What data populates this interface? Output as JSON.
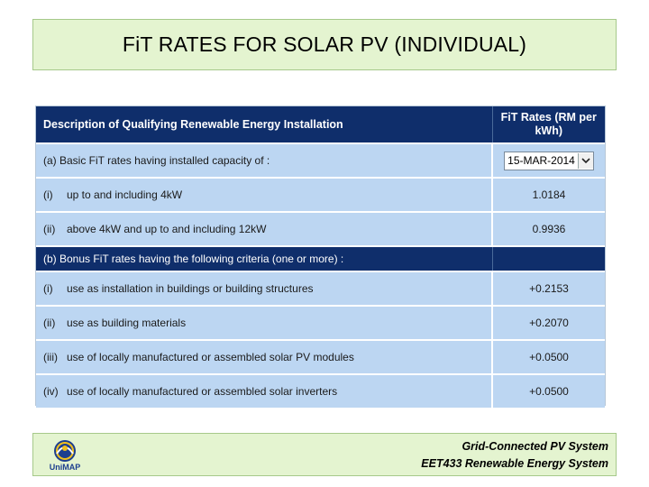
{
  "slide": {
    "title": "FiT RATES FOR SOLAR PV (INDIVIDUAL)"
  },
  "table": {
    "header": {
      "description": "Description of Qualifying Renewable Energy Installation",
      "rate_line1": "FiT Rates (RM per",
      "rate_line2": "kWh)"
    },
    "section_a": {
      "label": "(a) Basic FiT rates having installed capacity of :",
      "date_select": "15-MAR-2014"
    },
    "basic_rows": [
      {
        "num": "(i)",
        "text": "up to and including 4kW",
        "rate": "1.0184"
      },
      {
        "num": "(ii)",
        "text": "above 4kW and up to and including 12kW",
        "rate": "0.9936"
      }
    ],
    "section_b": {
      "label": "(b) Bonus FiT rates having the following criteria (one or more) :"
    },
    "bonus_rows": [
      {
        "num": "(i)",
        "text": "use as installation in buildings or building structures",
        "rate": "+0.2153"
      },
      {
        "num": "(ii)",
        "text": "use as building materials",
        "rate": "+0.2070"
      },
      {
        "num": "(iii)",
        "text": "use of locally manufactured or assembled solar PV modules",
        "rate": "+0.0500"
      },
      {
        "num": "(iv)",
        "text": "use of locally manufactured or assembled solar inverters",
        "rate": "+0.0500"
      }
    ]
  },
  "footer": {
    "logo_label": "UniMAP",
    "line1": "Grid-Connected PV System",
    "line2": "EET433 Renewable Energy System"
  },
  "colors": {
    "title_bg": "#e4f4d0",
    "header_bg": "#0f2e6b",
    "row_bg": "#bcd6f2"
  }
}
